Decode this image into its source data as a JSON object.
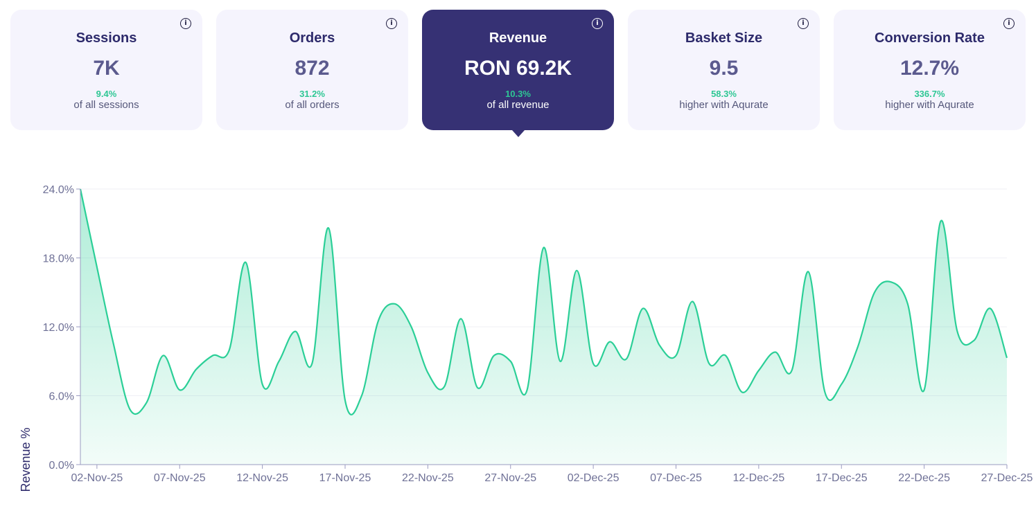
{
  "cards": [
    {
      "title": "Sessions",
      "value": "7K",
      "delta": "9.4%",
      "note": "of all sessions",
      "active": false
    },
    {
      "title": "Orders",
      "value": "872",
      "delta": "31.2%",
      "note": "of all orders",
      "active": false
    },
    {
      "title": "Revenue",
      "value": "RON 69.2K",
      "delta": "10.3%",
      "note": "of all revenue",
      "active": true
    },
    {
      "title": "Basket Size",
      "value": "9.5",
      "delta": "58.3%",
      "note": "higher with Aqurate",
      "active": false
    },
    {
      "title": "Conversion Rate",
      "value": "12.7%",
      "delta": "336.7%",
      "note": "higher with Aqurate",
      "active": false
    }
  ],
  "colors": {
    "card_bg": "#f5f4fd",
    "card_active_bg": "#363174",
    "accent": "#2ec794",
    "line": "#2bcf97",
    "title": "#2d2a6b"
  },
  "icons": {
    "info": "info-circle-icon"
  },
  "chart_data": {
    "type": "area",
    "ylabel": "Revenue %",
    "xlabel": "",
    "ylim": [
      0,
      24
    ],
    "y_ticks": [
      "0.0%",
      "6.0%",
      "12.0%",
      "18.0%",
      "24.0%"
    ],
    "x_tick_labels": [
      "02-Nov-25",
      "07-Nov-25",
      "12-Nov-25",
      "17-Nov-25",
      "22-Nov-25",
      "27-Nov-25",
      "02-Dec-25",
      "07-Dec-25",
      "12-Dec-25",
      "17-Dec-25",
      "22-Dec-25",
      "27-Dec-25"
    ],
    "x_start": "2025-11-01",
    "x_end": "2025-12-27",
    "grid": true,
    "legend": "none",
    "series": [
      {
        "x": [
          "2025-11-01",
          "2025-11-02",
          "2025-11-03",
          "2025-11-04",
          "2025-11-05",
          "2025-11-06",
          "2025-11-07",
          "2025-11-08",
          "2025-11-09",
          "2025-11-10",
          "2025-11-11",
          "2025-11-12",
          "2025-11-13",
          "2025-11-14",
          "2025-11-15",
          "2025-11-16",
          "2025-11-17",
          "2025-11-18",
          "2025-11-19",
          "2025-11-20",
          "2025-11-21",
          "2025-11-22",
          "2025-11-23",
          "2025-11-24",
          "2025-11-25",
          "2025-11-26",
          "2025-11-27",
          "2025-11-28",
          "2025-11-29",
          "2025-11-30",
          "2025-12-01",
          "2025-12-02",
          "2025-12-03",
          "2025-12-04",
          "2025-12-05",
          "2025-12-06",
          "2025-12-07",
          "2025-12-08",
          "2025-12-09",
          "2025-12-10",
          "2025-12-11",
          "2025-12-12",
          "2025-12-13",
          "2025-12-14",
          "2025-12-15",
          "2025-12-16",
          "2025-12-17",
          "2025-12-18",
          "2025-12-19",
          "2025-12-20",
          "2025-12-21",
          "2025-12-22",
          "2025-12-23",
          "2025-12-24",
          "2025-12-25",
          "2025-12-26",
          "2025-12-27"
        ],
        "y": [
          24.0,
          17.2,
          10.5,
          4.8,
          5.4,
          9.5,
          6.5,
          8.3,
          9.5,
          10.0,
          17.6,
          7.0,
          9.0,
          11.6,
          8.8,
          20.6,
          5.6,
          6.0,
          12.5,
          14.0,
          12.0,
          8.0,
          6.8,
          12.7,
          6.7,
          9.5,
          9.0,
          6.5,
          18.9,
          9.0,
          16.9,
          8.8,
          10.7,
          9.2,
          13.6,
          10.4,
          9.5,
          14.2,
          8.8,
          9.5,
          6.3,
          8.2,
          9.8,
          8.2,
          16.8,
          6.3,
          7.0,
          10.3,
          15.0,
          15.9,
          14.0,
          6.5,
          21.2,
          11.6,
          10.8,
          13.6,
          9.3
        ]
      }
    ]
  }
}
